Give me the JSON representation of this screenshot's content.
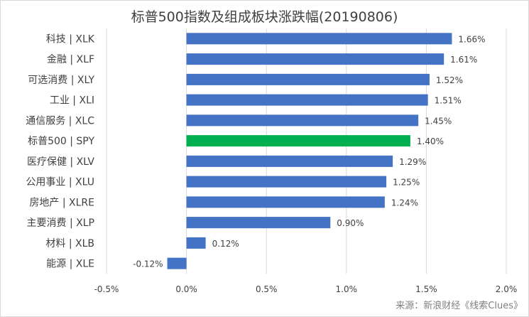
{
  "chart_data": {
    "type": "bar",
    "orientation": "horizontal",
    "title": "标普500指数及组成板块涨跌幅(20190806)",
    "xlabel": "",
    "ylabel": "",
    "xlim": [
      -0.5,
      2.0
    ],
    "x_ticks": [
      "-0.5%",
      "0.0%",
      "0.5%",
      "1.0%",
      "1.5%",
      "2.0%"
    ],
    "x_tick_values": [
      -0.5,
      0.0,
      0.5,
      1.0,
      1.5,
      2.0
    ],
    "grid": "vertical",
    "categories": [
      "科技 | XLK",
      "金融 | XLF",
      "可选消费 | XLY",
      "工业 | XLI",
      "通信服务 | XLC",
      "标普500 | SPY",
      "医疗保健 | XLV",
      "公用事业 | XLU",
      "房地产 | XLRE",
      "主要消费 | XLP",
      "材料 | XLB",
      "能源 | XLE"
    ],
    "values": [
      1.66,
      1.61,
      1.52,
      1.51,
      1.45,
      1.4,
      1.29,
      1.25,
      1.24,
      0.9,
      0.12,
      -0.12
    ],
    "data_labels": [
      "1.66%",
      "1.61%",
      "1.52%",
      "1.51%",
      "1.45%",
      "1.40%",
      "1.29%",
      "1.25%",
      "1.24%",
      "0.90%",
      "0.12%",
      "-0.12%"
    ],
    "highlight_category": "标普500 | SPY",
    "colors": {
      "bar": "#4472c4",
      "highlight": "#00b050",
      "grid": "#d9d9d9",
      "text": "#404040"
    }
  },
  "source_note": "来源：新浪财经《线索Clues》"
}
